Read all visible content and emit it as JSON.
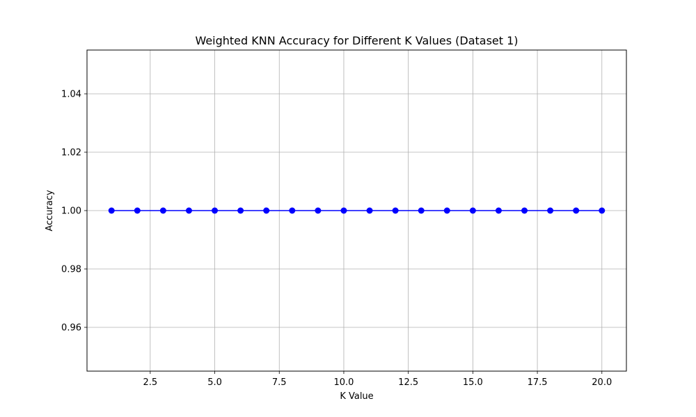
{
  "chart_data": {
    "type": "line",
    "title": "Weighted KNN Accuracy for Different K Values (Dataset 1)",
    "xlabel": "K Value",
    "ylabel": "Accuracy",
    "x": [
      1,
      2,
      3,
      4,
      5,
      6,
      7,
      8,
      9,
      10,
      11,
      12,
      13,
      14,
      15,
      16,
      17,
      18,
      19,
      20
    ],
    "series": [
      {
        "values": [
          1.0,
          1.0,
          1.0,
          1.0,
          1.0,
          1.0,
          1.0,
          1.0,
          1.0,
          1.0,
          1.0,
          1.0,
          1.0,
          1.0,
          1.0,
          1.0,
          1.0,
          1.0,
          1.0,
          1.0
        ],
        "color": "#0000ff",
        "marker": "circle"
      }
    ],
    "xlim": [
      0.05,
      20.95
    ],
    "ylim": [
      0.945,
      1.055
    ],
    "xticks": [
      2.5,
      5.0,
      7.5,
      10.0,
      12.5,
      15.0,
      17.5,
      20.0
    ],
    "xtick_labels": [
      "2.5",
      "5.0",
      "7.5",
      "10.0",
      "12.5",
      "15.0",
      "17.5",
      "20.0"
    ],
    "yticks": [
      0.96,
      0.98,
      1.0,
      1.02,
      1.04
    ],
    "ytick_labels": [
      "0.96",
      "0.98",
      "1.00",
      "1.02",
      "1.04"
    ],
    "grid": true,
    "grid_color": "#b0b0b0",
    "legend": false
  }
}
